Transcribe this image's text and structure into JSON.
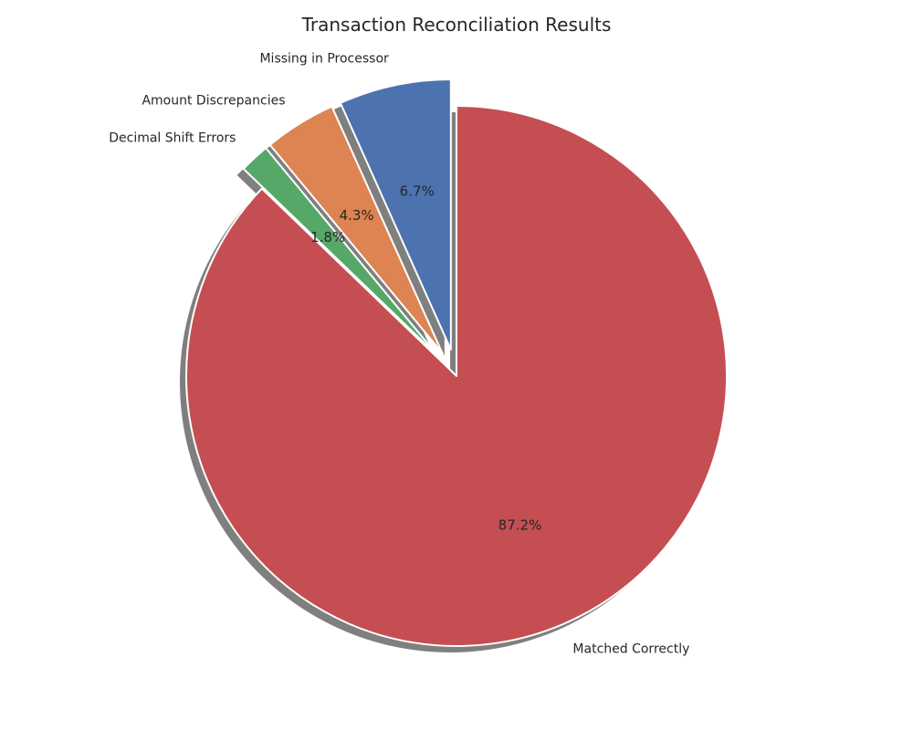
{
  "chart_data": {
    "type": "pie",
    "title": "Transaction Reconciliation Results",
    "categories": [
      "Missing in Processor",
      "Amount Discrepancies",
      "Decimal Shift Errors",
      "Matched Correctly"
    ],
    "values": [
      6.7,
      4.3,
      1.8,
      87.2
    ],
    "percent_labels": [
      "6.7%",
      "4.3%",
      "1.8%",
      "87.2%"
    ],
    "exploded": [
      true,
      true,
      true,
      false
    ],
    "shadow": true,
    "start_angle_deg": 90,
    "direction": "counterclockwise",
    "colors": [
      "#4c72b0",
      "#dd8452",
      "#55a868",
      "#c44e52"
    ],
    "edge_color": "#ffffff"
  }
}
